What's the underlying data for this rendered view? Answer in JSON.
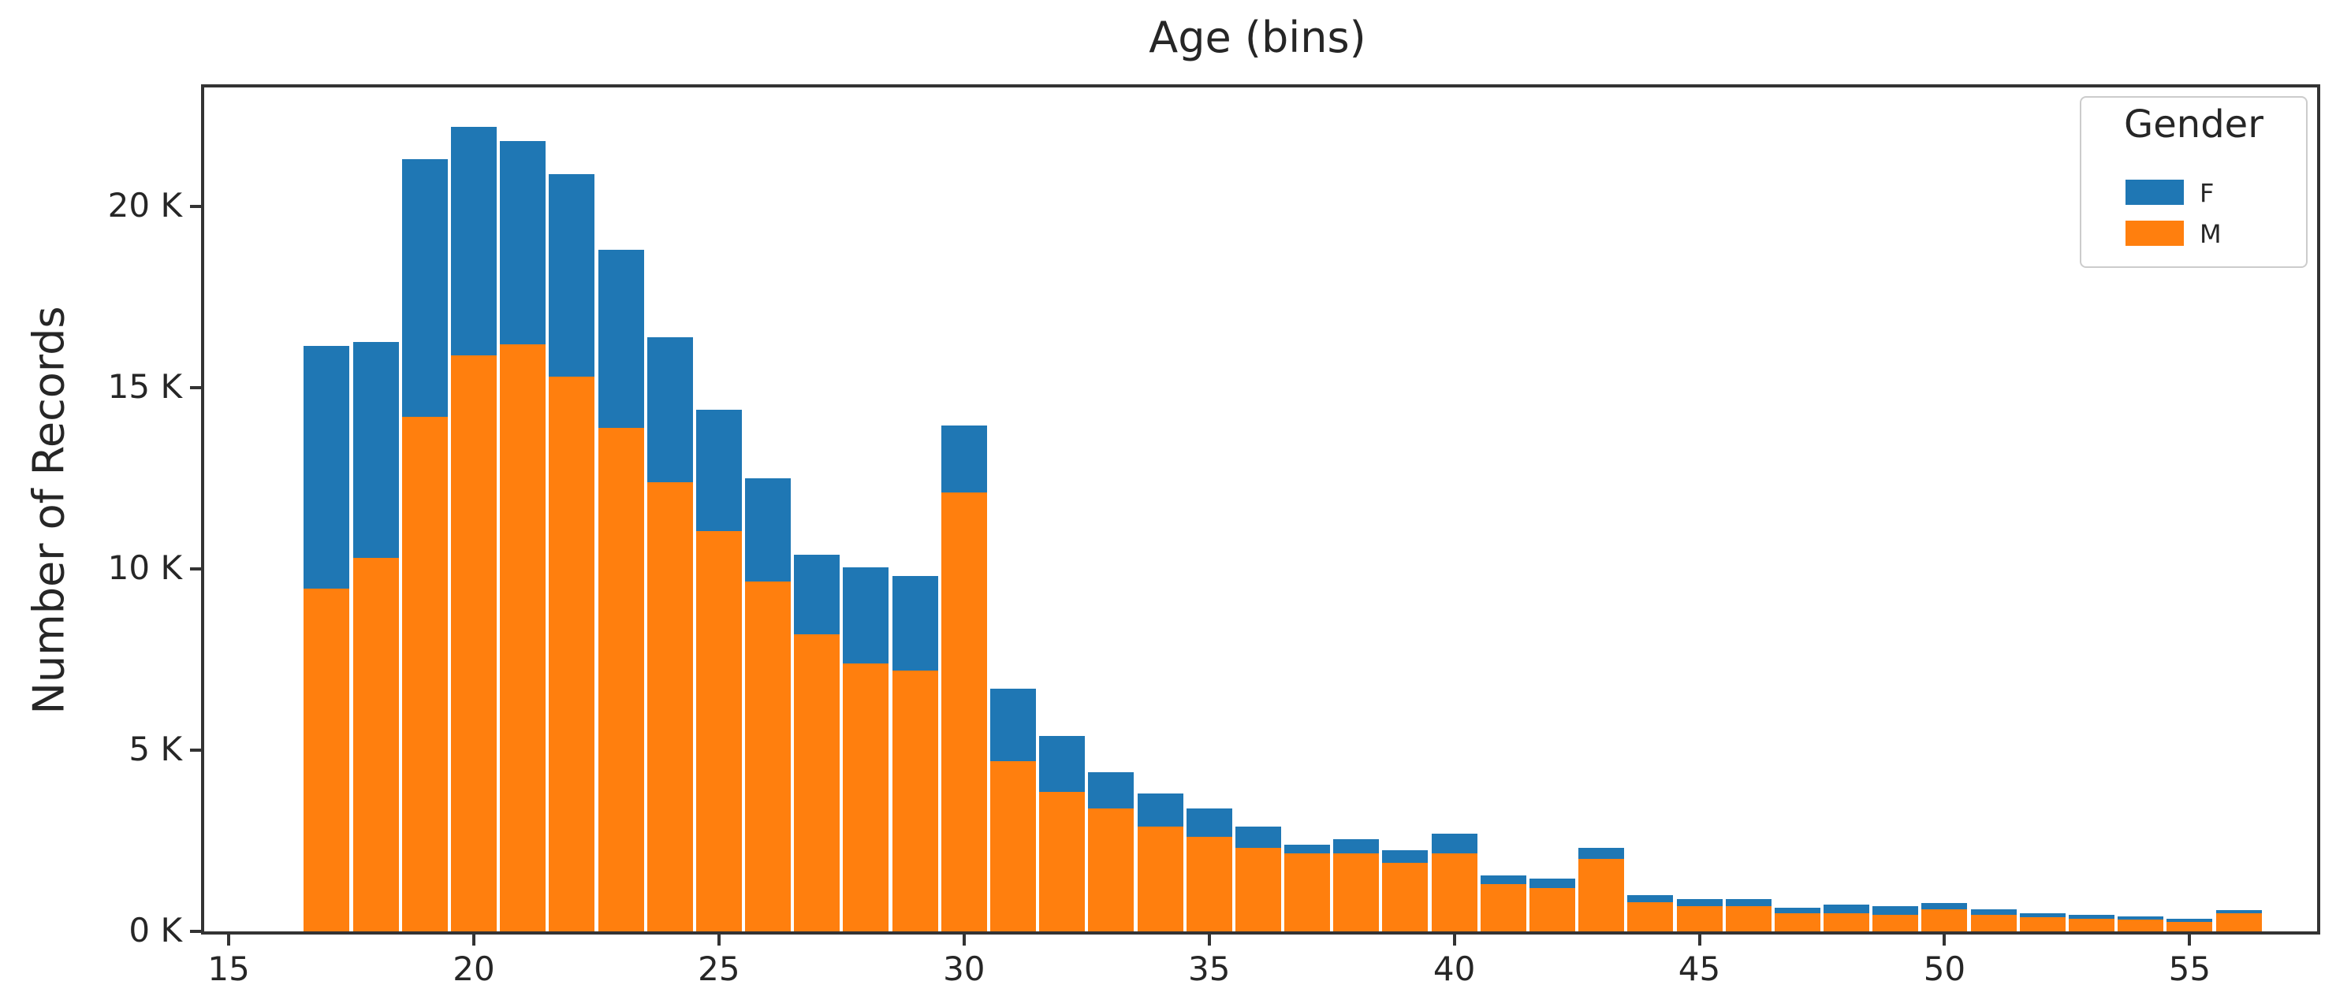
{
  "title": "Age (bins)",
  "y_axis_label": "Number of Records",
  "legend": {
    "title": "Gender",
    "items": [
      {
        "label": "F",
        "color": "#1f77b4"
      },
      {
        "label": "M",
        "color": "#ff7f0e"
      }
    ]
  },
  "colors": {
    "F": "#1f77b4",
    "M": "#ff7f0e",
    "axis": "#333333",
    "text": "#262626"
  },
  "chart_data": {
    "type": "bar",
    "stacked": true,
    "title": "Age (bins)",
    "xlabel": "",
    "ylabel": "Number of Records",
    "legend_title": "Gender",
    "legend_position": "upper right",
    "grid": false,
    "bin_width_years": 1,
    "x": [
      17,
      18,
      19,
      20,
      21,
      22,
      23,
      24,
      25,
      26,
      27,
      28,
      29,
      30,
      31,
      32,
      33,
      34,
      35,
      36,
      37,
      38,
      39,
      40,
      41,
      42,
      43,
      44,
      45,
      46,
      47,
      48,
      49,
      50,
      51,
      52,
      53,
      54,
      55,
      56
    ],
    "series": [
      {
        "name": "M",
        "color": "#ff7f0e",
        "values": [
          9450,
          10300,
          14200,
          15900,
          16200,
          15300,
          13900,
          12400,
          11050,
          9650,
          8200,
          7400,
          7200,
          12100,
          4700,
          3850,
          3400,
          2900,
          2600,
          2300,
          2150,
          2150,
          1900,
          2150,
          1300,
          1200,
          2000,
          800,
          700,
          700,
          500,
          500,
          450,
          600,
          450,
          400,
          350,
          330,
          270,
          500
        ]
      },
      {
        "name": "F",
        "color": "#1f77b4",
        "values": [
          6700,
          5950,
          7100,
          6300,
          5600,
          5600,
          4900,
          4000,
          3350,
          2850,
          2200,
          2650,
          2600,
          1850,
          2000,
          1550,
          1000,
          900,
          800,
          600,
          250,
          400,
          350,
          550,
          250,
          250,
          300,
          200,
          200,
          200,
          150,
          250,
          250,
          180,
          150,
          100,
          100,
          90,
          80,
          80
        ]
      }
    ],
    "xticks": [
      15,
      20,
      25,
      30,
      35,
      40,
      45,
      50,
      55
    ],
    "yticks": [
      {
        "value": 0,
        "label": "0 K"
      },
      {
        "value": 5000,
        "label": "5 K"
      },
      {
        "value": 10000,
        "label": "10 K"
      },
      {
        "value": 15000,
        "label": "15 K"
      },
      {
        "value": 20000,
        "label": "20 K"
      }
    ],
    "xlim": [
      14.5,
      57.6
    ],
    "ylim": [
      0,
      23280
    ]
  }
}
